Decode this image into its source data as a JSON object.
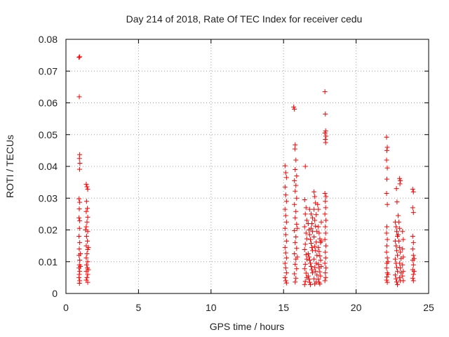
{
  "chart_data": {
    "type": "scatter",
    "title": "Day 214 of 2018, Rate Of TEC Index for receiver cedu",
    "xlabel": "GPS time / hours",
    "ylabel": "ROTI / TECUs",
    "xlim": [
      0,
      25
    ],
    "ylim": [
      0,
      0.08
    ],
    "xticks": [
      0,
      5,
      10,
      15,
      20,
      25
    ],
    "yticks": [
      0,
      0.01,
      0.02,
      0.03,
      0.04,
      0.05,
      0.06,
      0.07,
      0.08
    ],
    "xtick_labels": [
      "0",
      "5",
      "10",
      "15",
      "20",
      "25"
    ],
    "ytick_labels": [
      "0",
      "0.01",
      "0.02",
      "0.03",
      "0.04",
      "0.05",
      "0.06",
      "0.07",
      "0.08"
    ],
    "grid": true,
    "marker": "+",
    "color": "#ff0000",
    "series": [
      {
        "name": "ROTI",
        "points": [
          [
            0.9,
            0.0743
          ],
          [
            0.95,
            0.0745
          ],
          [
            0.92,
            0.0619
          ],
          [
            0.95,
            0.0437
          ],
          [
            0.93,
            0.0425
          ],
          [
            0.96,
            0.041
          ],
          [
            0.94,
            0.0391
          ],
          [
            0.9,
            0.0298
          ],
          [
            0.95,
            0.0287
          ],
          [
            0.92,
            0.0266
          ],
          [
            0.9,
            0.0238
          ],
          [
            0.95,
            0.0229
          ],
          [
            0.93,
            0.0205
          ],
          [
            0.9,
            0.018
          ],
          [
            0.95,
            0.016
          ],
          [
            0.92,
            0.014
          ],
          [
            0.9,
            0.012
          ],
          [
            0.95,
            0.0105
          ],
          [
            0.93,
            0.009
          ],
          [
            0.9,
            0.008
          ],
          [
            0.95,
            0.007
          ],
          [
            0.92,
            0.006
          ],
          [
            0.9,
            0.005
          ],
          [
            0.95,
            0.004
          ],
          [
            0.93,
            0.0032
          ],
          [
            1.0,
            0.0085
          ],
          [
            1.0,
            0.0125
          ],
          [
            1.4,
            0.0344
          ],
          [
            1.45,
            0.0336
          ],
          [
            1.5,
            0.0328
          ],
          [
            1.42,
            0.029
          ],
          [
            1.48,
            0.0268
          ],
          [
            1.4,
            0.0258
          ],
          [
            1.5,
            0.024
          ],
          [
            1.45,
            0.0225
          ],
          [
            1.4,
            0.021
          ],
          [
            1.5,
            0.0195
          ],
          [
            1.42,
            0.018
          ],
          [
            1.48,
            0.0165
          ],
          [
            1.4,
            0.015
          ],
          [
            1.5,
            0.0138
          ],
          [
            1.45,
            0.0125
          ],
          [
            1.4,
            0.0112
          ],
          [
            1.5,
            0.01
          ],
          [
            1.42,
            0.009
          ],
          [
            1.48,
            0.008
          ],
          [
            1.4,
            0.007
          ],
          [
            1.5,
            0.006
          ],
          [
            1.45,
            0.005
          ],
          [
            1.4,
            0.0042
          ],
          [
            1.5,
            0.0035
          ],
          [
            1.55,
            0.0145
          ],
          [
            1.55,
            0.0075
          ],
          [
            1.35,
            0.02
          ],
          [
            15.1,
            0.0402
          ],
          [
            15.15,
            0.038
          ],
          [
            15.2,
            0.0365
          ],
          [
            15.1,
            0.0335
          ],
          [
            15.15,
            0.031
          ],
          [
            15.2,
            0.029
          ],
          [
            15.1,
            0.0265
          ],
          [
            15.15,
            0.0245
          ],
          [
            15.2,
            0.0225
          ],
          [
            15.1,
            0.0205
          ],
          [
            15.15,
            0.0185
          ],
          [
            15.2,
            0.0165
          ],
          [
            15.1,
            0.0145
          ],
          [
            15.15,
            0.0128
          ],
          [
            15.2,
            0.0112
          ],
          [
            15.1,
            0.0095
          ],
          [
            15.15,
            0.008
          ],
          [
            15.2,
            0.0065
          ],
          [
            15.1,
            0.005
          ],
          [
            15.15,
            0.004
          ],
          [
            15.2,
            0.0033
          ],
          [
            15.7,
            0.0587
          ],
          [
            15.75,
            0.058
          ],
          [
            15.8,
            0.0468
          ],
          [
            15.78,
            0.0455
          ],
          [
            15.85,
            0.042
          ],
          [
            15.8,
            0.039
          ],
          [
            15.9,
            0.037
          ],
          [
            15.75,
            0.0355
          ],
          [
            15.85,
            0.034
          ],
          [
            15.8,
            0.0322
          ],
          [
            15.9,
            0.03
          ],
          [
            15.75,
            0.028
          ],
          [
            15.85,
            0.0258
          ],
          [
            15.8,
            0.0238
          ],
          [
            15.9,
            0.0218
          ],
          [
            15.75,
            0.0198
          ],
          [
            15.85,
            0.0178
          ],
          [
            15.8,
            0.016
          ],
          [
            15.9,
            0.0142
          ],
          [
            15.75,
            0.0125
          ],
          [
            15.85,
            0.0108
          ],
          [
            15.8,
            0.0092
          ],
          [
            15.9,
            0.0078
          ],
          [
            15.75,
            0.0062
          ],
          [
            15.85,
            0.0048
          ],
          [
            15.8,
            0.0036
          ],
          [
            15.95,
            0.0205
          ],
          [
            15.95,
            0.0115
          ],
          [
            16.5,
            0.04
          ],
          [
            16.45,
            0.0295
          ],
          [
            16.55,
            0.027
          ],
          [
            16.5,
            0.025
          ],
          [
            16.6,
            0.023
          ],
          [
            16.45,
            0.021
          ],
          [
            16.55,
            0.019
          ],
          [
            16.6,
            0.0172
          ],
          [
            16.5,
            0.0155
          ],
          [
            16.45,
            0.0138
          ],
          [
            16.55,
            0.0122
          ],
          [
            16.6,
            0.0108
          ],
          [
            16.5,
            0.0092
          ],
          [
            16.45,
            0.0078
          ],
          [
            16.55,
            0.0064
          ],
          [
            16.6,
            0.005
          ],
          [
            16.5,
            0.0038
          ],
          [
            16.45,
            0.0028
          ],
          [
            16.7,
            0.022
          ],
          [
            16.75,
            0.02
          ],
          [
            16.8,
            0.0185
          ],
          [
            16.85,
            0.017
          ],
          [
            16.9,
            0.0158
          ],
          [
            16.95,
            0.0145
          ],
          [
            17.0,
            0.0135
          ],
          [
            16.7,
            0.0125
          ],
          [
            16.75,
            0.0115
          ],
          [
            16.8,
            0.0105
          ],
          [
            16.85,
            0.0095
          ],
          [
            16.9,
            0.0085
          ],
          [
            16.95,
            0.0075
          ],
          [
            17.0,
            0.0065
          ],
          [
            16.7,
            0.0055
          ],
          [
            16.75,
            0.0045
          ],
          [
            16.8,
            0.0035
          ],
          [
            16.85,
            0.0028
          ],
          [
            16.8,
            0.0265
          ],
          [
            16.9,
            0.025
          ],
          [
            17.0,
            0.0238
          ],
          [
            16.95,
            0.022
          ],
          [
            16.9,
            0.0205
          ],
          [
            17.0,
            0.0195
          ],
          [
            17.1,
            0.032
          ],
          [
            17.15,
            0.0305
          ],
          [
            17.2,
            0.0285
          ],
          [
            17.1,
            0.0265
          ],
          [
            17.25,
            0.0248
          ],
          [
            17.15,
            0.023
          ],
          [
            17.2,
            0.0212
          ],
          [
            17.3,
            0.0195
          ],
          [
            17.1,
            0.0178
          ],
          [
            17.25,
            0.0162
          ],
          [
            17.15,
            0.0148
          ],
          [
            17.2,
            0.0135
          ],
          [
            17.3,
            0.012
          ],
          [
            17.1,
            0.0108
          ],
          [
            17.25,
            0.0095
          ],
          [
            17.15,
            0.0082
          ],
          [
            17.2,
            0.007
          ],
          [
            17.3,
            0.0058
          ],
          [
            17.1,
            0.0046
          ],
          [
            17.25,
            0.0036
          ],
          [
            17.15,
            0.003
          ],
          [
            17.35,
            0.028
          ],
          [
            17.4,
            0.0265
          ],
          [
            17.4,
            0.021
          ],
          [
            17.45,
            0.019
          ],
          [
            17.5,
            0.0172
          ],
          [
            17.55,
            0.016
          ],
          [
            17.4,
            0.0145
          ],
          [
            17.45,
            0.0132
          ],
          [
            17.5,
            0.0118
          ],
          [
            17.55,
            0.0105
          ],
          [
            17.4,
            0.0092
          ],
          [
            17.45,
            0.008
          ],
          [
            17.5,
            0.0068
          ],
          [
            17.55,
            0.0055
          ],
          [
            17.4,
            0.0045
          ],
          [
            17.45,
            0.0035
          ],
          [
            17.5,
            0.003
          ],
          [
            17.6,
            0.0225
          ],
          [
            17.6,
            0.0165
          ],
          [
            17.6,
            0.0085
          ],
          [
            17.85,
            0.0635
          ],
          [
            17.88,
            0.0565
          ],
          [
            17.9,
            0.0512
          ],
          [
            17.85,
            0.0505
          ],
          [
            17.92,
            0.0495
          ],
          [
            17.88,
            0.0485
          ],
          [
            17.9,
            0.0475
          ],
          [
            17.85,
            0.0315
          ],
          [
            17.92,
            0.0305
          ],
          [
            17.88,
            0.029
          ],
          [
            17.9,
            0.027
          ],
          [
            17.85,
            0.025
          ],
          [
            17.92,
            0.023
          ],
          [
            17.88,
            0.021
          ],
          [
            17.9,
            0.019
          ],
          [
            17.85,
            0.017
          ],
          [
            17.92,
            0.015
          ],
          [
            17.88,
            0.013
          ],
          [
            17.9,
            0.0112
          ],
          [
            17.85,
            0.0095
          ],
          [
            17.92,
            0.008
          ],
          [
            17.88,
            0.0065
          ],
          [
            17.9,
            0.005
          ],
          [
            17.85,
            0.004
          ],
          [
            22.1,
            0.0492
          ],
          [
            22.15,
            0.046
          ],
          [
            22.12,
            0.045
          ],
          [
            22.1,
            0.042
          ],
          [
            22.15,
            0.0395
          ],
          [
            22.12,
            0.036
          ],
          [
            22.1,
            0.0315
          ],
          [
            22.15,
            0.028
          ],
          [
            22.12,
            0.021
          ],
          [
            22.1,
            0.019
          ],
          [
            22.15,
            0.017
          ],
          [
            22.12,
            0.015
          ],
          [
            22.1,
            0.013
          ],
          [
            22.15,
            0.0112
          ],
          [
            22.12,
            0.0095
          ],
          [
            22.1,
            0.008
          ],
          [
            22.15,
            0.0065
          ],
          [
            22.12,
            0.0052
          ],
          [
            22.1,
            0.0042
          ],
          [
            22.15,
            0.0035
          ],
          [
            22.2,
            0.01
          ],
          [
            22.2,
            0.006
          ],
          [
            22.7,
            0.0225
          ],
          [
            22.75,
            0.021
          ],
          [
            22.8,
            0.0195
          ],
          [
            22.85,
            0.018
          ],
          [
            22.7,
            0.0165
          ],
          [
            22.75,
            0.015
          ],
          [
            22.8,
            0.0135
          ],
          [
            22.85,
            0.012
          ],
          [
            22.7,
            0.0108
          ],
          [
            22.75,
            0.0095
          ],
          [
            22.8,
            0.0082
          ],
          [
            22.85,
            0.007
          ],
          [
            22.7,
            0.0058
          ],
          [
            22.75,
            0.0046
          ],
          [
            22.8,
            0.0036
          ],
          [
            22.85,
            0.0028
          ],
          [
            22.78,
            0.033
          ],
          [
            22.82,
            0.0288
          ],
          [
            22.9,
            0.0245
          ],
          [
            22.95,
            0.0225
          ],
          [
            23.0,
            0.0205
          ],
          [
            22.9,
            0.0185
          ],
          [
            22.95,
            0.0165
          ],
          [
            23.0,
            0.0145
          ],
          [
            23.0,
            0.0362
          ],
          [
            23.05,
            0.0355
          ],
          [
            23.02,
            0.0345
          ],
          [
            23.05,
            0.013
          ],
          [
            23.1,
            0.011
          ],
          [
            23.0,
            0.0095
          ],
          [
            23.05,
            0.008
          ],
          [
            23.1,
            0.0065
          ],
          [
            23.0,
            0.005
          ],
          [
            23.05,
            0.004
          ],
          [
            23.2,
            0.0195
          ],
          [
            23.25,
            0.017
          ],
          [
            23.2,
            0.014
          ],
          [
            23.25,
            0.0115
          ],
          [
            23.2,
            0.009
          ],
          [
            23.25,
            0.007
          ],
          [
            23.2,
            0.0055
          ],
          [
            23.25,
            0.004
          ],
          [
            23.9,
            0.0328
          ],
          [
            23.95,
            0.032
          ],
          [
            23.9,
            0.027
          ],
          [
            23.95,
            0.0255
          ],
          [
            23.9,
            0.018
          ],
          [
            23.95,
            0.016
          ],
          [
            23.9,
            0.014
          ],
          [
            23.95,
            0.012
          ],
          [
            23.9,
            0.0105
          ],
          [
            23.95,
            0.009
          ],
          [
            23.9,
            0.0075
          ],
          [
            23.95,
            0.006
          ],
          [
            23.9,
            0.0048
          ],
          [
            23.95,
            0.004
          ],
          [
            24.0,
            0.011
          ],
          [
            24.0,
            0.007
          ]
        ]
      }
    ]
  }
}
